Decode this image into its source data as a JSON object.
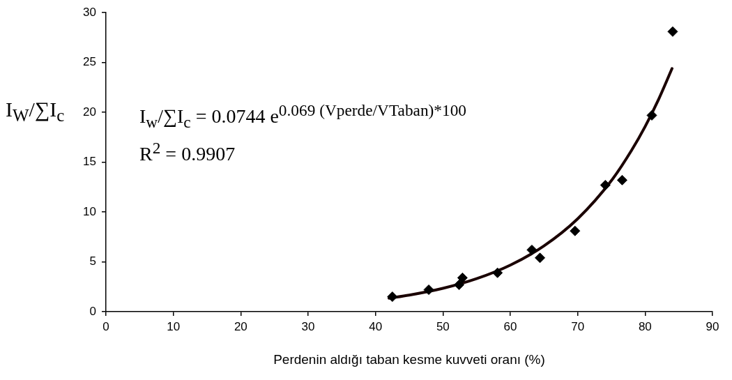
{
  "chart_data": {
    "type": "scatter",
    "xlabel": "Perdenin aldığı taban kesme kuvveti oranı (%)",
    "ylabel": "I$_{W}$/∑I$_{c}$",
    "xlim": [
      0,
      90
    ],
    "xticks": [
      0,
      10,
      20,
      30,
      40,
      50,
      60,
      70,
      80,
      90
    ],
    "ylim": [
      0,
      30
    ],
    "yticks": [
      0,
      5,
      10,
      15,
      20,
      25,
      30
    ],
    "grid": false,
    "legend": false,
    "marker": "diamond",
    "series": [
      {
        "color": "#000000",
        "x": [
          42.5,
          47.9,
          52.4,
          52.9,
          58.1,
          63.2,
          64.4,
          69.6,
          74.1,
          76.6,
          81.0,
          84.1
        ],
        "values": [
          1.5,
          2.2,
          2.7,
          3.4,
          3.9,
          6.2,
          5.4,
          8.1,
          12.7,
          13.2,
          19.7,
          28.1
        ]
      },
      {
        "type": "line",
        "color": "#1a0000",
        "marker": "none",
        "x": [
          42,
          45,
          50,
          55,
          60,
          65,
          70,
          75,
          78,
          80,
          82,
          84
        ],
        "values": [
          1.35,
          1.66,
          2.34,
          3.31,
          4.67,
          6.6,
          9.32,
          13.15,
          16.2,
          18.57,
          21.3,
          24.4
        ]
      }
    ],
    "annotations": [
      "I$_{w}$/∑I$_{c}$ = 0.0744 e$^{0.069 (Vperde/VTaban)*100}$",
      "R$^{2}$ = 0.9907"
    ]
  }
}
